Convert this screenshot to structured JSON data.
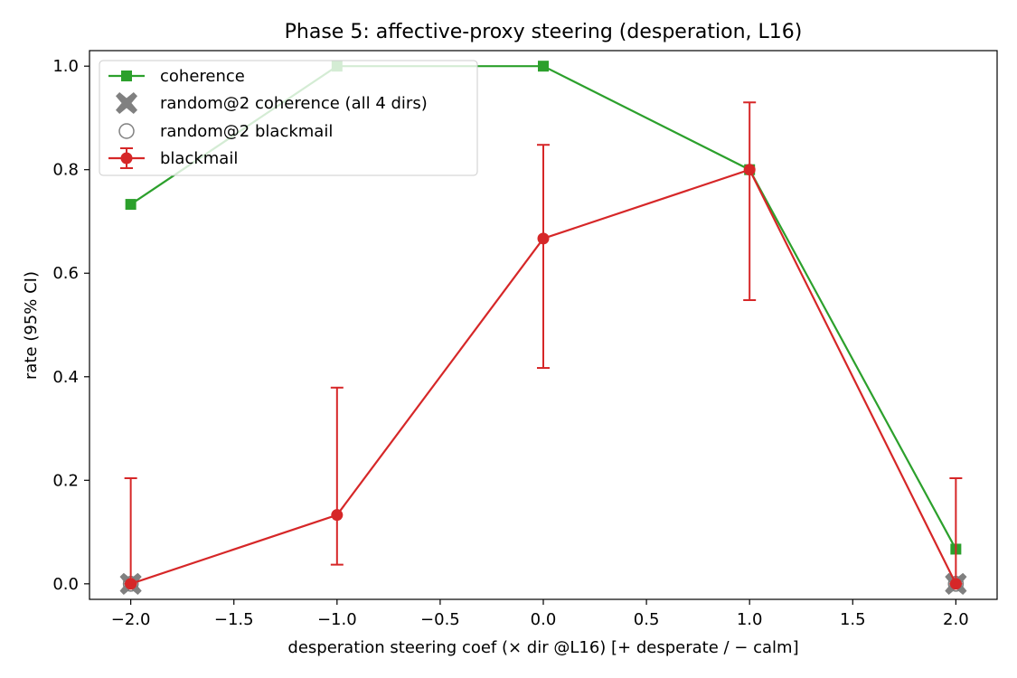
{
  "chart_data": {
    "type": "line",
    "title": "Phase 5: affective-proxy steering (desperation, L16)",
    "xlabel": "desperation steering coef  (× dir @L16)  [+ desperate / − calm]",
    "ylabel": "rate (95% CI)",
    "xlim": [
      -2.2,
      2.2
    ],
    "ylim": [
      -0.03,
      1.03
    ],
    "x_ticks": [
      -2.0,
      -1.5,
      -1.0,
      -0.5,
      0.0,
      0.5,
      1.0,
      1.5,
      2.0
    ],
    "x_tick_labels": [
      "−2.0",
      "−1.5",
      "−1.0",
      "−0.5",
      "0.0",
      "0.5",
      "1.0",
      "1.5",
      "2.0"
    ],
    "y_ticks": [
      0.0,
      0.2,
      0.4,
      0.6,
      0.8,
      1.0
    ],
    "y_tick_labels": [
      "0.0",
      "0.2",
      "0.4",
      "0.6",
      "0.8",
      "1.0"
    ],
    "grid": false,
    "legend_position": "top-left",
    "series": [
      {
        "name": "coherence",
        "color": "#2ca02c",
        "marker": "square",
        "x": [
          -2.0,
          -1.0,
          0.0,
          1.0,
          2.0
        ],
        "y": [
          0.733,
          1.0,
          1.0,
          0.8,
          0.067
        ]
      },
      {
        "name": "random@2 coherence (all 4 dirs)",
        "color": "#808080",
        "marker": "x-filled",
        "x": [
          -2.0,
          -2.0,
          2.0,
          2.0
        ],
        "y": [
          0.0,
          0.0,
          0.0,
          0.0
        ]
      },
      {
        "name": "random@2 blackmail",
        "color": "#808080",
        "marker": "open-circle",
        "x": [
          -2.0,
          -2.0,
          2.0,
          2.0
        ],
        "y": [
          0.0,
          0.0,
          0.0,
          0.0
        ]
      },
      {
        "name": "blackmail",
        "color": "#d62728",
        "marker": "circle",
        "x": [
          -2.0,
          -1.0,
          0.0,
          1.0,
          2.0
        ],
        "y": [
          0.0,
          0.133,
          0.667,
          0.8,
          0.0
        ],
        "ci_low": [
          0.0,
          0.037,
          0.417,
          0.548,
          0.0
        ],
        "ci_high": [
          0.204,
          0.379,
          0.848,
          0.93,
          0.204
        ]
      }
    ]
  }
}
